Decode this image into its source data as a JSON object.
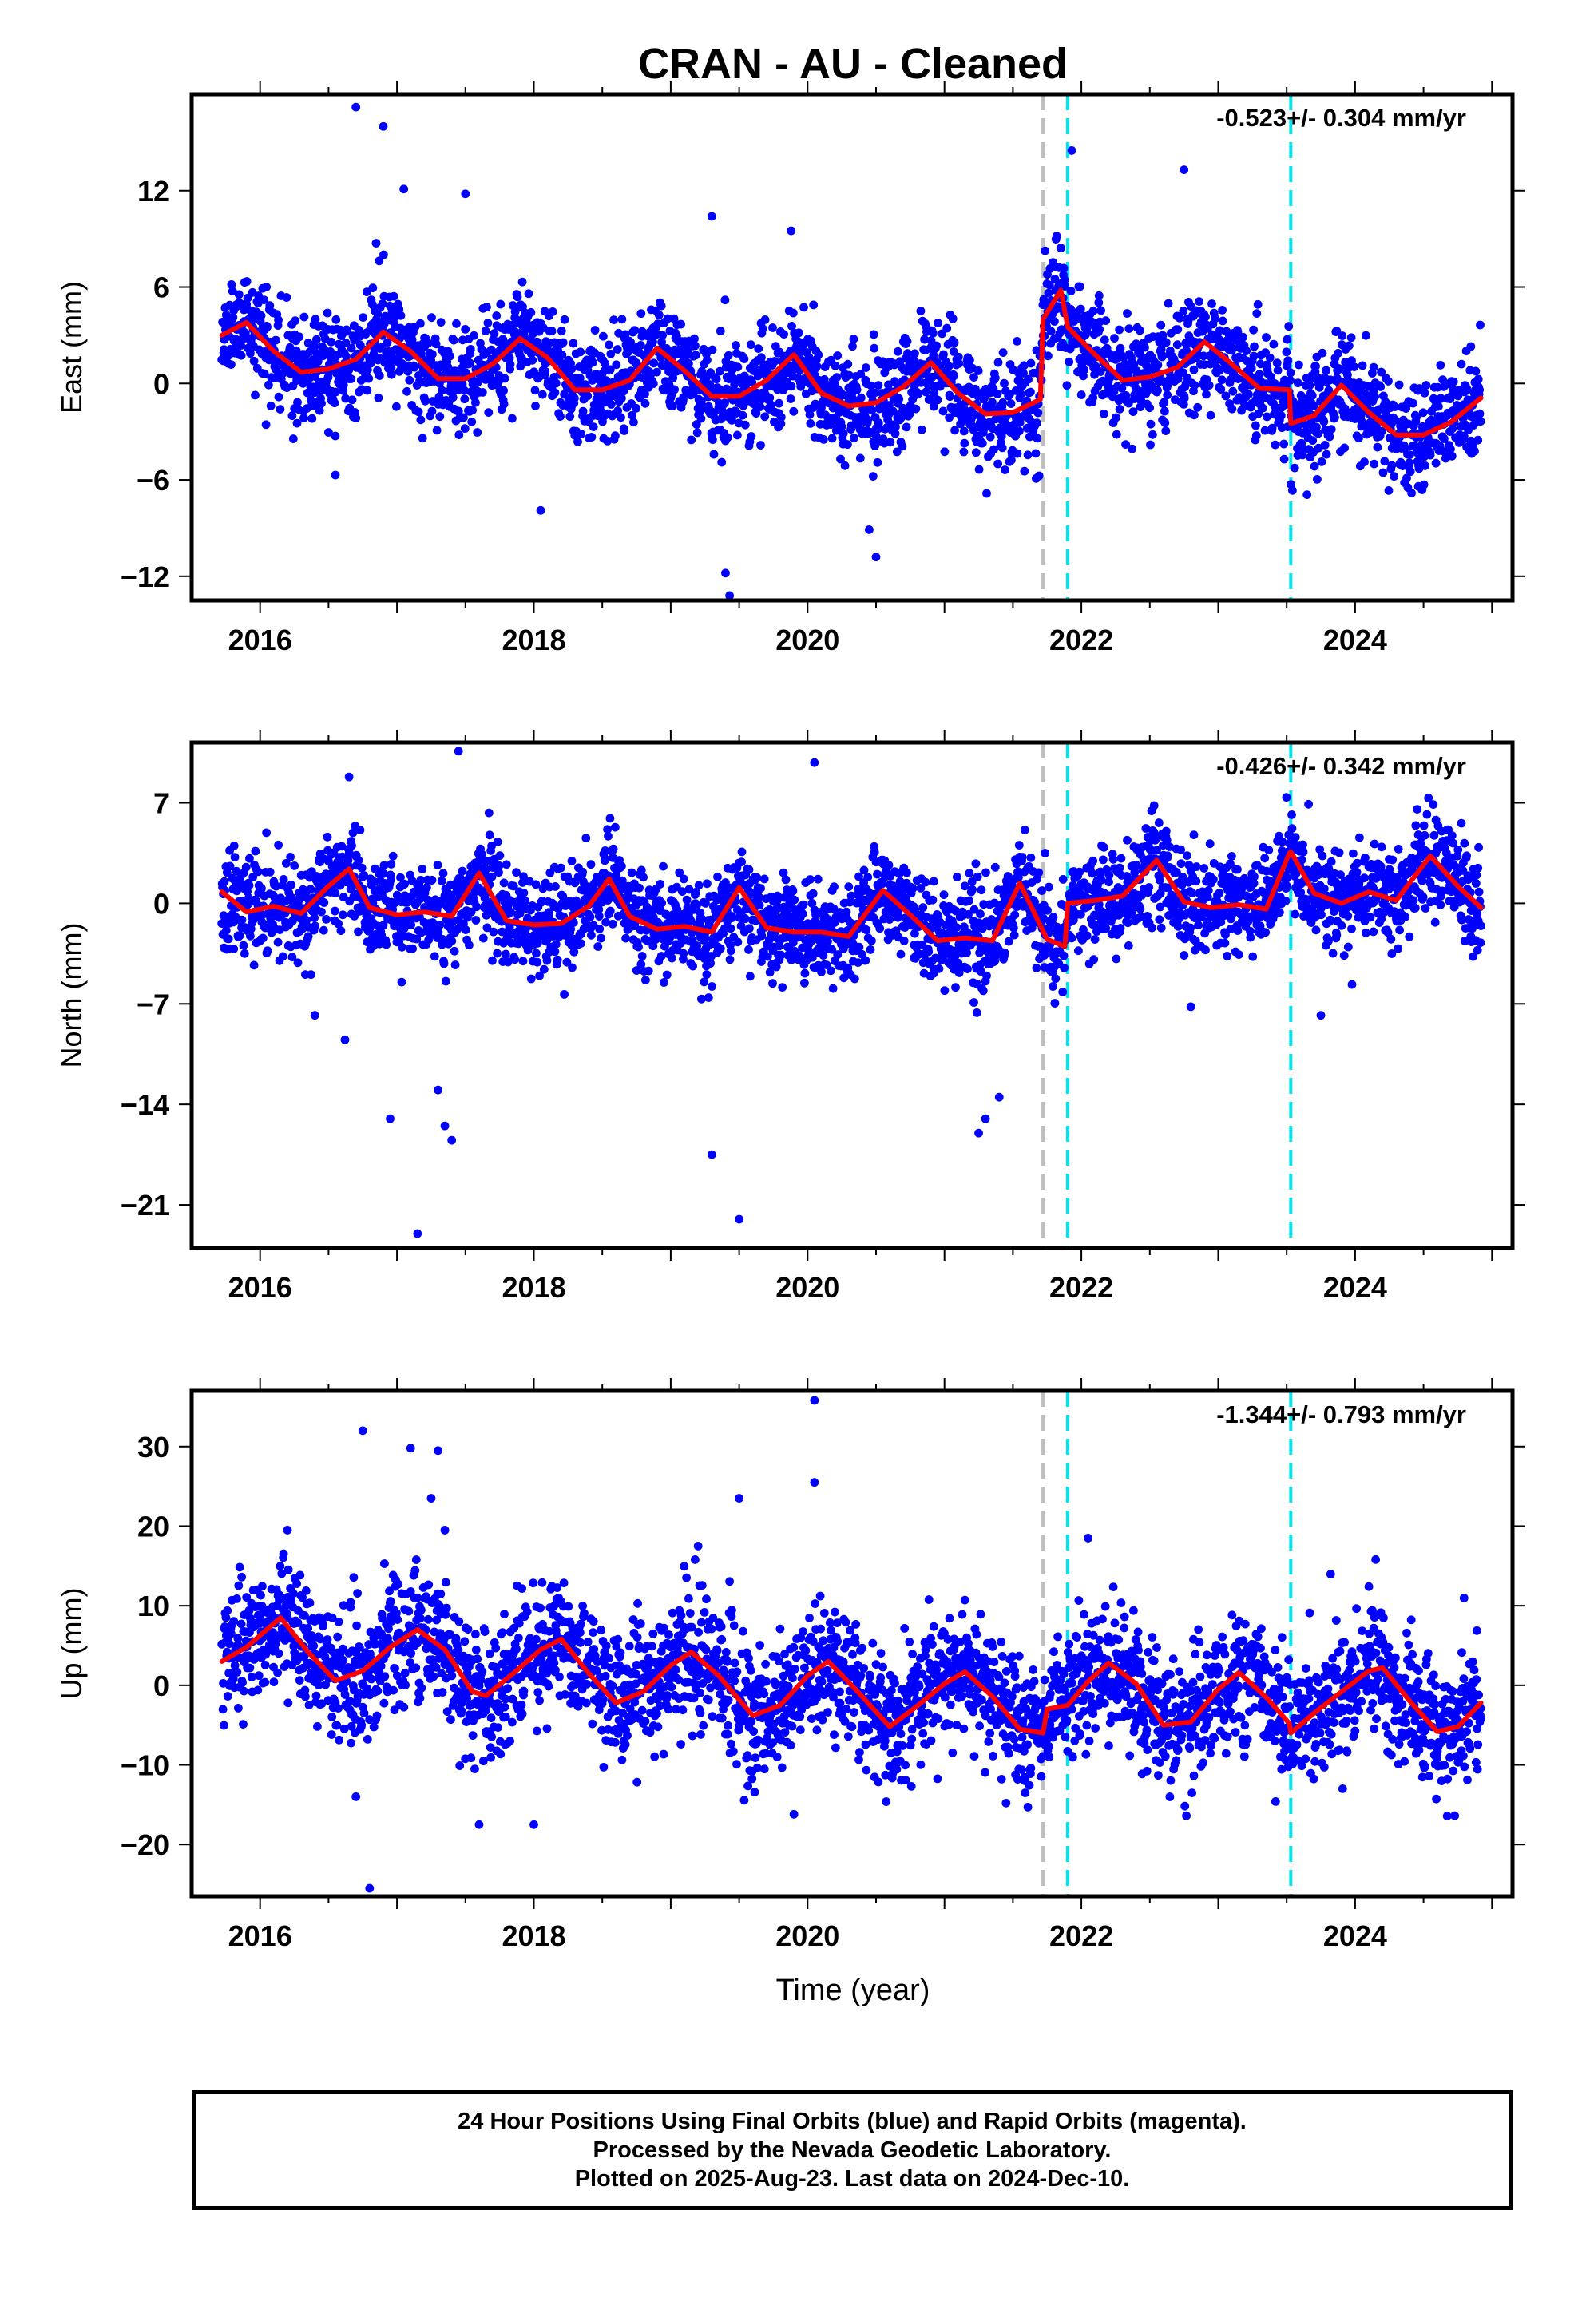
{
  "title": "CRAN  - AU - Cleaned",
  "xlabel": "Time (year)",
  "colors": {
    "data": "#0000ff",
    "model": "#ff0000",
    "offset_cyan": "#00e5ee",
    "offset_gray": "#bebebe"
  },
  "caption": [
    "24 Hour Positions Using Final Orbits (blue) and Rapid Orbits (magenta).",
    "Processed by the Nevada Geodetic Laboratory.",
    "Plotted on 2025-Aug-23. Last data on 2024-Dec-10."
  ],
  "chart_data": [
    {
      "type": "scatter",
      "ylabel": "East (mm)",
      "rate_text": "-0.523+/- 0.304 mm/yr",
      "xlim": [
        2015.5,
        2025.15
      ],
      "ylim": [
        -13.5,
        18.0
      ],
      "xticks": [
        2016,
        2018,
        2020,
        2022,
        2024
      ],
      "yticks": [
        12,
        6,
        0,
        -6,
        -12
      ],
      "offsets": [
        {
          "x": 2021.72,
          "kind": "gray"
        },
        {
          "x": 2021.9,
          "kind": "cyan"
        },
        {
          "x": 2023.53,
          "kind": "cyan"
        }
      ],
      "series": [
        {
          "x": [
            2015.72,
            2015.9,
            2016.1,
            2016.3,
            2016.5,
            2016.7,
            2016.9,
            2017.1,
            2017.3,
            2017.5,
            2017.7,
            2017.9,
            2018.1,
            2018.3,
            2018.5,
            2018.7,
            2018.9,
            2019.1,
            2019.3,
            2019.5,
            2019.7,
            2019.9,
            2020.1,
            2020.3,
            2020.5,
            2020.7,
            2020.9,
            2021.1,
            2021.3,
            2021.5,
            2021.7,
            2021.72,
            2021.85,
            2021.9,
            2022.1,
            2022.3,
            2022.5,
            2022.7,
            2022.9,
            2023.1,
            2023.3,
            2023.52,
            2023.53,
            2023.7,
            2023.9,
            2024.1,
            2024.3,
            2024.5,
            2024.7,
            2024.92
          ],
          "y": [
            3.0,
            3.8,
            2.0,
            0.7,
            0.9,
            1.5,
            3.2,
            2.0,
            0.3,
            0.3,
            1.2,
            2.8,
            1.6,
            -0.4,
            -0.4,
            0.2,
            2.2,
            0.8,
            -0.8,
            -0.8,
            0.2,
            1.8,
            -0.6,
            -1.4,
            -1.2,
            -0.2,
            1.3,
            -0.6,
            -1.9,
            -1.8,
            -1.0,
            4.0,
            5.8,
            3.5,
            1.8,
            0.2,
            0.4,
            1.0,
            2.6,
            1.2,
            -0.3,
            -0.4,
            -2.5,
            -2.0,
            -0.1,
            -1.8,
            -3.2,
            -3.2,
            -2.4,
            -0.9
          ]
        }
      ],
      "scatter_seed": 11,
      "scatter_noise": 1.6,
      "outliers": [
        [
          2016.7,
          17.2
        ],
        [
          2016.9,
          16.0
        ],
        [
          2019.43,
          -13.2
        ],
        [
          2019.4,
          -11.8
        ],
        [
          2017.5,
          11.8
        ],
        [
          2017.05,
          12.1
        ],
        [
          2019.3,
          10.4
        ],
        [
          2019.88,
          9.5
        ],
        [
          2021.93,
          14.5
        ],
        [
          2022.75,
          13.3
        ],
        [
          2020.45,
          -9.1
        ],
        [
          2020.5,
          -10.8
        ],
        [
          2016.55,
          -5.7
        ],
        [
          2018.05,
          -7.9
        ]
      ]
    },
    {
      "type": "scatter",
      "ylabel": "North (mm)",
      "rate_text": "-0.426+/- 0.342 mm/yr",
      "xlim": [
        2015.5,
        2025.15
      ],
      "ylim": [
        -24.0,
        11.2
      ],
      "xticks": [
        2016,
        2018,
        2020,
        2022,
        2024
      ],
      "yticks": [
        7,
        0,
        -7,
        -14,
        -21
      ],
      "offsets": [
        {
          "x": 2021.72,
          "kind": "gray"
        },
        {
          "x": 2021.9,
          "kind": "cyan"
        },
        {
          "x": 2023.53,
          "kind": "cyan"
        }
      ],
      "series": [
        {
          "x": [
            2015.72,
            2015.9,
            2016.1,
            2016.3,
            2016.5,
            2016.65,
            2016.8,
            2017.0,
            2017.2,
            2017.4,
            2017.6,
            2017.8,
            2018.0,
            2018.2,
            2018.4,
            2018.55,
            2018.7,
            2018.9,
            2019.1,
            2019.3,
            2019.5,
            2019.7,
            2019.9,
            2020.1,
            2020.3,
            2020.55,
            2020.75,
            2020.95,
            2021.15,
            2021.35,
            2021.55,
            2021.75,
            2021.88,
            2021.9,
            2022.1,
            2022.3,
            2022.55,
            2022.75,
            2022.95,
            2023.15,
            2023.35,
            2023.52,
            2023.53,
            2023.7,
            2023.9,
            2024.1,
            2024.3,
            2024.55,
            2024.75,
            2024.92
          ],
          "y": [
            0.8,
            -0.6,
            -0.2,
            -0.7,
            1.2,
            2.4,
            -0.3,
            -0.8,
            -0.6,
            -0.9,
            2.1,
            -1.2,
            -1.5,
            -1.4,
            -0.2,
            1.7,
            -0.9,
            -1.8,
            -1.6,
            -2.0,
            1.1,
            -1.7,
            -2.0,
            -2.0,
            -2.3,
            0.9,
            -0.8,
            -2.6,
            -2.4,
            -2.6,
            1.4,
            -2.5,
            -3.0,
            0.0,
            0.2,
            0.5,
            3.0,
            0.1,
            -0.3,
            -0.1,
            -0.4,
            3.5,
            3.6,
            0.7,
            0.0,
            0.8,
            0.2,
            3.3,
            1.2,
            -0.3
          ]
        }
      ],
      "scatter_seed": 23,
      "scatter_noise": 1.7,
      "outliers": [
        [
          2017.15,
          -23.0
        ],
        [
          2017.45,
          10.6
        ],
        [
          2019.5,
          -22.0
        ],
        [
          2019.3,
          -17.5
        ],
        [
          2020.05,
          9.8
        ],
        [
          2016.65,
          8.8
        ],
        [
          2016.95,
          -15.0
        ],
        [
          2017.35,
          -15.5
        ],
        [
          2017.4,
          -16.5
        ],
        [
          2021.25,
          -16.0
        ],
        [
          2021.3,
          -15.0
        ],
        [
          2021.4,
          -13.5
        ],
        [
          2017.3,
          -13.0
        ],
        [
          2022.8,
          -7.2
        ],
        [
          2023.75,
          -7.8
        ],
        [
          2016.4,
          -7.8
        ],
        [
          2016.62,
          -9.5
        ]
      ]
    },
    {
      "type": "scatter",
      "ylabel": "Up (mm)",
      "rate_text": "-1.344+/- 0.793 mm/yr",
      "xlim": [
        2015.5,
        2025.15
      ],
      "ylim": [
        -26.5,
        37.0
      ],
      "xticks": [
        2016,
        2018,
        2020,
        2022,
        2024
      ],
      "yticks": [
        30,
        20,
        10,
        0,
        -10,
        -20
      ],
      "offsets": [
        {
          "x": 2021.72,
          "kind": "gray"
        },
        {
          "x": 2021.9,
          "kind": "cyan"
        },
        {
          "x": 2023.53,
          "kind": "cyan"
        }
      ],
      "series": [
        {
          "x": [
            2015.72,
            2015.9,
            2016.15,
            2016.35,
            2016.55,
            2016.75,
            2016.95,
            2017.15,
            2017.35,
            2017.55,
            2017.65,
            2017.85,
            2018.05,
            2018.2,
            2018.4,
            2018.6,
            2018.8,
            2019.0,
            2019.15,
            2019.35,
            2019.6,
            2019.8,
            2020.0,
            2020.15,
            2020.35,
            2020.6,
            2020.8,
            2021.0,
            2021.15,
            2021.35,
            2021.55,
            2021.72,
            2021.75,
            2021.9,
            2022.05,
            2022.2,
            2022.4,
            2022.6,
            2022.8,
            2023.0,
            2023.15,
            2023.35,
            2023.52,
            2023.53,
            2023.7,
            2023.9,
            2024.1,
            2024.2,
            2024.4,
            2024.6,
            2024.75,
            2024.92
          ],
          "y": [
            3.0,
            4.8,
            8.5,
            4.2,
            0.6,
            1.8,
            4.8,
            7.0,
            4.5,
            -0.8,
            -1.3,
            1.5,
            4.5,
            5.8,
            1.5,
            -2.2,
            -0.8,
            2.5,
            4.2,
            1.2,
            -3.8,
            -2.5,
            1.2,
            3.0,
            -0.5,
            -5.2,
            -2.6,
            0.2,
            1.7,
            -1.4,
            -5.5,
            -6.0,
            -3.0,
            -2.5,
            0.5,
            2.8,
            0.2,
            -5.0,
            -4.6,
            -0.5,
            1.6,
            -1.5,
            -4.8,
            -6.0,
            -3.5,
            -0.8,
            1.8,
            2.2,
            -2.0,
            -5.8,
            -5.2,
            -2.2
          ]
        }
      ],
      "scatter_seed": 37,
      "scatter_noise": 4.0,
      "outliers": [
        [
          2016.75,
          32.0
        ],
        [
          2016.8,
          -25.5
        ],
        [
          2017.1,
          29.8
        ],
        [
          2017.3,
          29.5
        ],
        [
          2017.25,
          23.5
        ],
        [
          2017.35,
          19.5
        ],
        [
          2020.05,
          35.8
        ],
        [
          2020.05,
          25.5
        ],
        [
          2019.5,
          23.5
        ],
        [
          2016.2,
          19.5
        ],
        [
          2016.7,
          -14.0
        ],
        [
          2019.9,
          -16.2
        ],
        [
          2021.45,
          -14.8
        ],
        [
          2022.05,
          18.5
        ],
        [
          2024.15,
          15.8
        ],
        [
          2018.0,
          -17.5
        ],
        [
          2017.6,
          -17.5
        ],
        [
          2019.2,
          17.5
        ]
      ]
    }
  ]
}
